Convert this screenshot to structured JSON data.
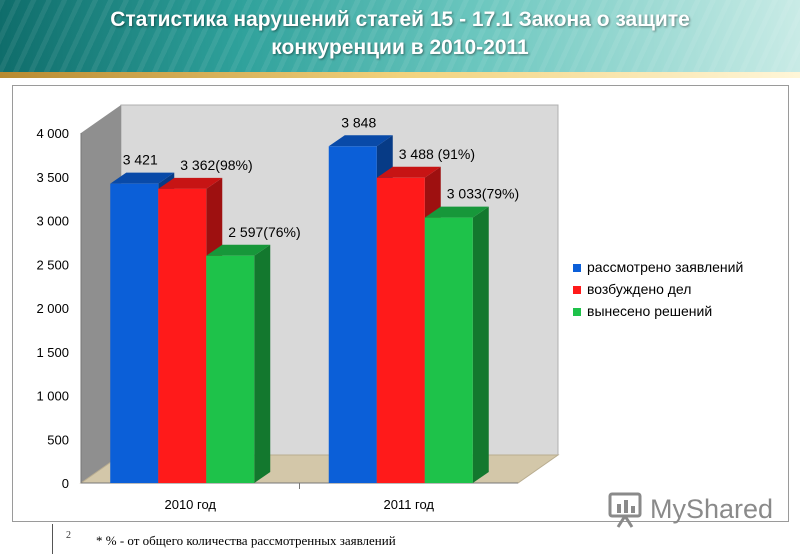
{
  "slide": {
    "title_line1": "Статистика нарушений статей 15 - 17.1 Закона о защите",
    "title_line2": "конкуренции в 2010-2011",
    "page_number": "2",
    "footnote": "* % - от общего количества рассмотренных  заявлений",
    "logo_text": "MyShared"
  },
  "chart_data": {
    "type": "bar",
    "categories": [
      "2010 год",
      "2011 год"
    ],
    "series": [
      {
        "name": "рассмотрено заявлений",
        "color": "#0b5fd8",
        "values": [
          3421,
          3848
        ],
        "labels": [
          "3 421",
          "3 848"
        ]
      },
      {
        "name": "возбуждено дел",
        "color": "#ff1a1a",
        "values": [
          3362,
          3488
        ],
        "labels": [
          "3 362(98%)",
          "3 488 (91%)"
        ]
      },
      {
        "name": "вынесено решений",
        "color": "#1ec24a",
        "values": [
          2597,
          3033
        ],
        "labels": [
          "2 597(76%)",
          "3 033(79%)"
        ]
      }
    ],
    "ylim": [
      0,
      4000
    ],
    "yticks": [
      0,
      500,
      1000,
      1500,
      2000,
      2500,
      3000,
      3500,
      4000
    ],
    "ytick_labels": [
      "0",
      "500",
      "1 000",
      "1 500",
      "2 000",
      "2 500",
      "3 000",
      "3 500",
      "4 000"
    ],
    "legend_position": "right",
    "grid": false
  }
}
